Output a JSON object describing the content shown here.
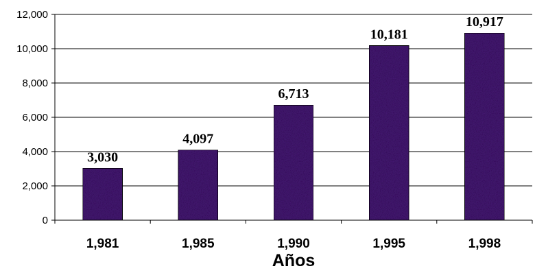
{
  "chart_data": {
    "type": "bar",
    "categories": [
      "1,981",
      "1,985",
      "1,990",
      "1,995",
      "1,998"
    ],
    "values": [
      3030,
      4097,
      6713,
      10181,
      10917
    ],
    "data_labels": [
      "3,030",
      "4,097",
      "6,713",
      "10,181",
      "10,917"
    ],
    "xlabel": "Años",
    "ylabel": "",
    "ylim": [
      0,
      12000
    ],
    "yticks": [
      0,
      2000,
      4000,
      6000,
      8000,
      10000,
      12000
    ],
    "ytick_labels": [
      "0",
      "2,000",
      "4,000",
      "6,000",
      "8,000",
      "10,000",
      "12,000"
    ],
    "grid": true,
    "legend": "none",
    "bar_color": "#4a1d78",
    "bar_color_dark": "#2e0c52",
    "bar_color_light": "#6a3aa0"
  }
}
